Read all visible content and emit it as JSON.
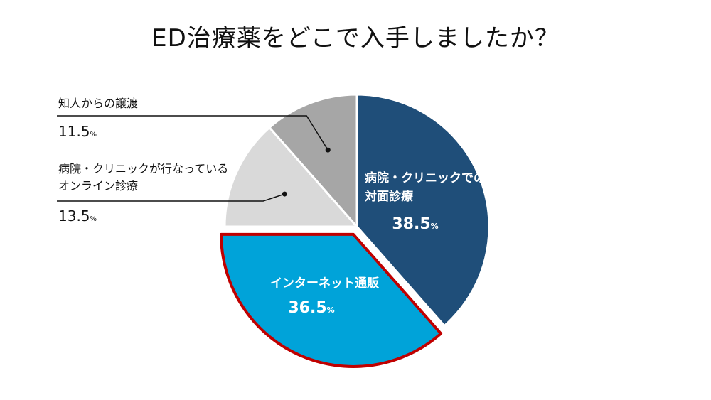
{
  "title": "ED治療薬をどこで入手しましたか？",
  "percent_unit": "%",
  "chart_data": {
    "type": "pie",
    "title": "ED治療薬をどこで入手しましたか？",
    "slices": [
      {
        "label_lines": [
          "病院・クリニックでの",
          "対面診療"
        ],
        "value": 38.5,
        "value_text": "38.5",
        "color": "#1f4e79",
        "label_color": "#ffffff",
        "label_position": "inside"
      },
      {
        "label_lines": [
          "インターネット通販"
        ],
        "value": 36.5,
        "value_text": "36.5",
        "color": "#00a3d9",
        "label_color": "#ffffff",
        "label_position": "inside",
        "highlight_border": "#c00000"
      },
      {
        "label_lines": [
          "病院・クリニックが行なっている",
          "オンライン診療"
        ],
        "value": 13.5,
        "value_text": "13.5",
        "color": "#d9d9d9",
        "label_color": "#111111",
        "label_position": "outside-left"
      },
      {
        "label_lines": [
          "知人からの譲渡"
        ],
        "value": 11.5,
        "value_text": "11.5",
        "color": "#a6a6a6",
        "label_color": "#111111",
        "label_position": "outside-left"
      }
    ]
  }
}
